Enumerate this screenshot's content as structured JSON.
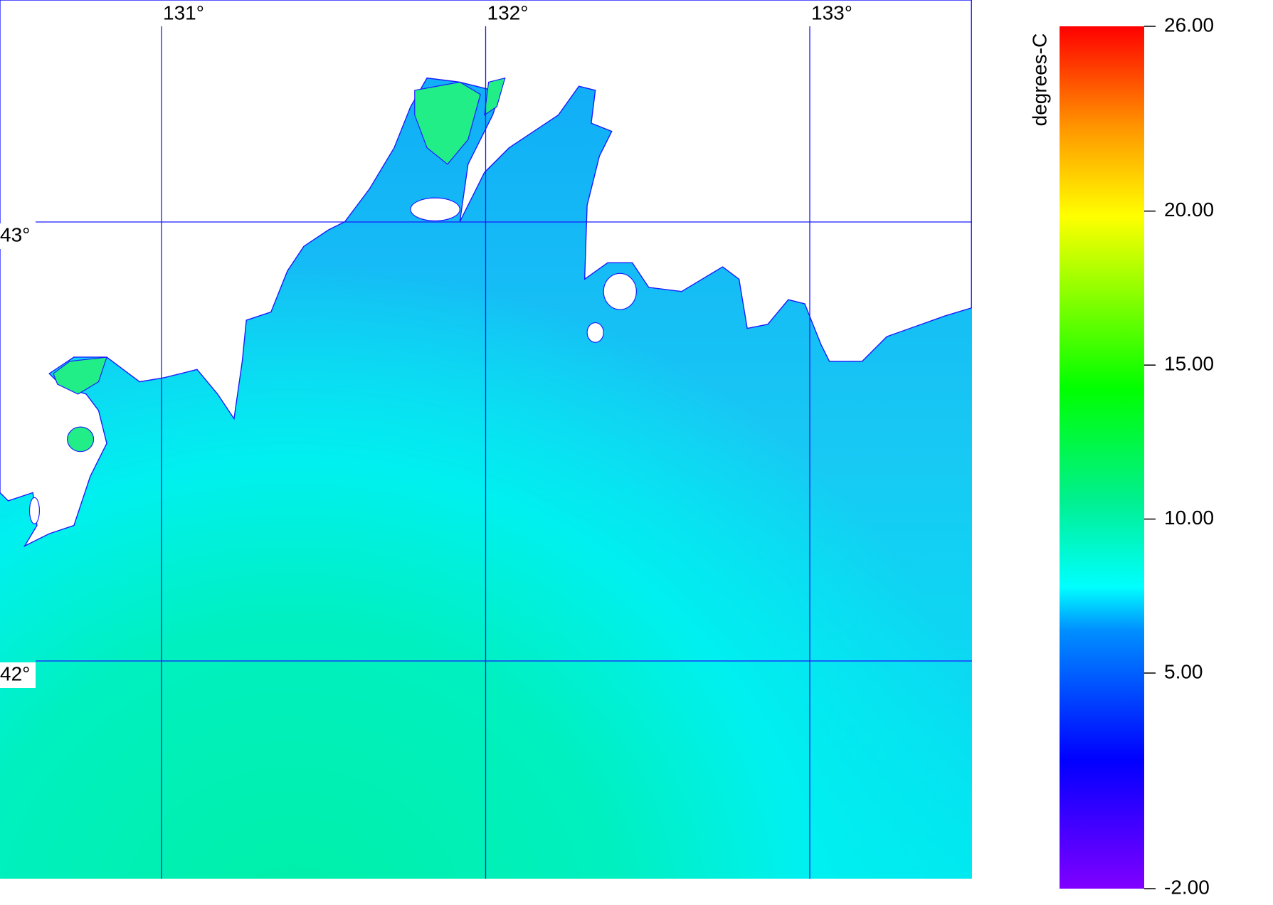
{
  "map": {
    "lon_ticks": [
      {
        "value": 131,
        "label": "131°"
      },
      {
        "value": 132,
        "label": "132°"
      },
      {
        "value": 133,
        "label": "133°"
      }
    ],
    "lat_ticks": [
      {
        "value": 43,
        "label": "43°"
      },
      {
        "value": 42,
        "label": "42°"
      }
    ],
    "colorbar": {
      "label": "degrees-C",
      "lim": [
        -2,
        26
      ],
      "ticks": [
        {
          "value": -2,
          "label": "-2.00"
        },
        {
          "value": 5,
          "label": "5.00"
        },
        {
          "value": 10,
          "label": "10.00"
        },
        {
          "value": 15,
          "label": "15.00"
        },
        {
          "value": 20,
          "label": "20.00"
        },
        {
          "value": 26,
          "label": "26.00"
        }
      ]
    }
  }
}
